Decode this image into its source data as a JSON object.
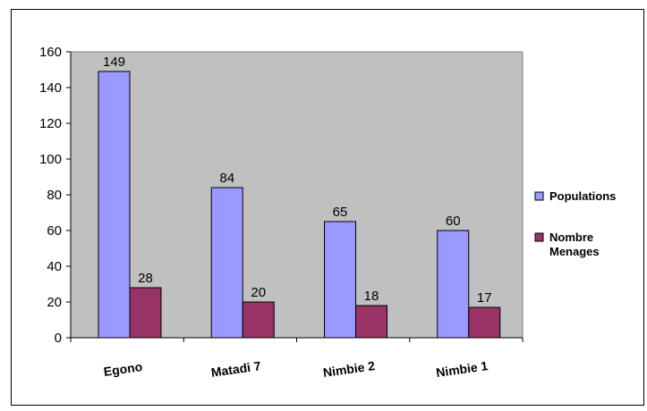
{
  "chart_data": {
    "type": "bar",
    "categories": [
      "Egono",
      "Matadi 7",
      "Nimbie 2",
      "Nimbie 1"
    ],
    "series": [
      {
        "name": "Populations",
        "values": [
          149,
          84,
          65,
          60
        ],
        "color": "#9999ff"
      },
      {
        "name": "Nombre Menages",
        "values": [
          28,
          20,
          18,
          17
        ],
        "color": "#993366"
      }
    ],
    "y_ticks": [
      "0",
      "20",
      "40",
      "60",
      "80",
      "100",
      "120",
      "140",
      "160"
    ],
    "ylim": [
      0,
      160
    ],
    "grid": false,
    "plot_background": "#c0c0c0",
    "legend_position": "right",
    "legend": {
      "populations": "Populations",
      "menages_line1": "Nombre",
      "menages_line2": "Menages"
    }
  }
}
